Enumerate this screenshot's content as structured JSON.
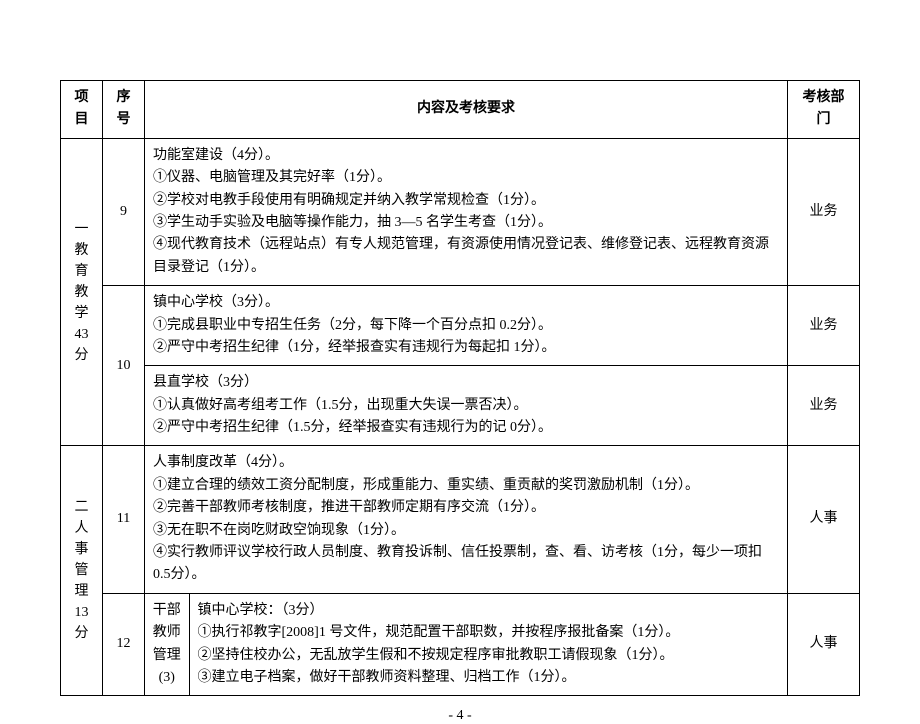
{
  "page_number": "- 4 -",
  "headers": {
    "project": "项目",
    "seq": "序号",
    "content": "内容及考核要求",
    "department": "考核部门"
  },
  "rows": [
    {
      "project": "一\n教\n育\n教\n学\n43\n分",
      "project_rowspan": 3,
      "seq": "9",
      "seq_rowspan": 1,
      "content": "功能室建设（4分）。\n①仪器、电脑管理及其完好率（1分）。\n②学校对电教手段使用有明确规定并纳入教学常规检查（1分）。\n③学生动手实验及电脑等操作能力，抽 3—5 名学生考查（1分）。\n④现代教育技术（远程站点）有专人规范管理，有资源使用情况登记表、维修登记表、远程教育资源目录登记（1分）。",
      "department": "业务"
    },
    {
      "seq": "10",
      "seq_rowspan": 2,
      "content": "镇中心学校（3分）。\n①完成县职业中专招生任务（2分，每下降一个百分点扣 0.2分）。\n②严守中考招生纪律（1分，经举报查实有违规行为每起扣 1分）。",
      "department": "业务"
    },
    {
      "content": "县直学校（3分）\n①认真做好高考组考工作（1.5分，出现重大失误一票否决）。\n②严守中考招生纪律（1.5分，经举报查实有违规行为的记 0分）。",
      "department": "业务"
    },
    {
      "project": "二\n人\n事\n管\n理\n13\n分",
      "project_rowspan": 2,
      "seq": "11",
      "content": "人事制度改革（4分）。\n①建立合理的绩效工资分配制度，形成重能力、重实绩、重贡献的奖罚激励机制（1分）。\n②完善干部教师考核制度，推进干部教师定期有序交流（1分）。\n③无在职不在岗吃财政空饷现象（1分）。\n④实行教师评议学校行政人员制度、教育投诉制、信任投票制，查、看、访考核（1分，每少一项扣 0.5分）。",
      "department": "人事"
    },
    {
      "seq": "12",
      "sublabel": "干部\n教师\n管理\n(3)",
      "content": "镇中心学校：（3分）\n①执行祁教字[2008]1 号文件，规范配置干部职数，并按程序报批备案（1分）。\n②坚持住校办公，无乱放学生假和不按规定程序审批教职工请假现象（1分）。\n③建立电子档案，做好干部教师资料整理、归档工作（1分）。",
      "department": "人事"
    }
  ]
}
